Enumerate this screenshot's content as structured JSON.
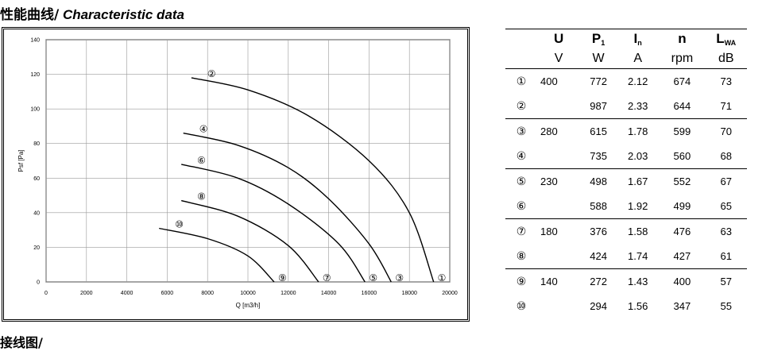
{
  "heading": {
    "cn": "性能曲线/",
    "en": " Characteristic data"
  },
  "footer_heading": "接线图/",
  "chart_data": {
    "type": "line",
    "xlabel": "Q [m3/h]",
    "ylabel": "Psf [Pa]",
    "xlim": [
      0,
      20000
    ],
    "ylim": [
      0,
      140
    ],
    "xticks": [
      0,
      2000,
      4000,
      6000,
      8000,
      10000,
      12000,
      14000,
      16000,
      18000,
      20000
    ],
    "yticks": [
      0,
      20,
      40,
      60,
      80,
      100,
      120,
      140
    ],
    "grid": true,
    "series": [
      {
        "name": "②",
        "points": [
          [
            7200,
            118
          ],
          [
            10000,
            111
          ],
          [
            13000,
            96
          ],
          [
            16000,
            70
          ],
          [
            18000,
            40
          ],
          [
            19200,
            0
          ]
        ]
      },
      {
        "name": "④",
        "points": [
          [
            6800,
            86
          ],
          [
            9500,
            79
          ],
          [
            12000,
            66
          ],
          [
            14000,
            48
          ],
          [
            16000,
            22
          ],
          [
            17100,
            0
          ]
        ]
      },
      {
        "name": "⑥",
        "points": [
          [
            6700,
            68
          ],
          [
            9500,
            60
          ],
          [
            12000,
            45
          ],
          [
            14500,
            22
          ],
          [
            15800,
            0
          ]
        ]
      },
      {
        "name": "⑧",
        "points": [
          [
            6700,
            47
          ],
          [
            9500,
            38
          ],
          [
            12000,
            21
          ],
          [
            13500,
            0
          ]
        ]
      },
      {
        "name": "⑩",
        "points": [
          [
            5600,
            31
          ],
          [
            8000,
            25
          ],
          [
            10000,
            15
          ],
          [
            11300,
            0
          ]
        ]
      }
    ],
    "end_markers": [
      {
        "label": "①",
        "x": 19200,
        "y": 0
      },
      {
        "label": "③",
        "x": 17100,
        "y": 0
      },
      {
        "label": "⑤",
        "x": 15800,
        "y": 0
      },
      {
        "label": "⑦",
        "x": 13500,
        "y": 0
      },
      {
        "label": "⑨",
        "x": 11300,
        "y": 0
      }
    ]
  },
  "table": {
    "headers": [
      {
        "main": "U",
        "sub": ""
      },
      {
        "main": "P",
        "sub": "1"
      },
      {
        "main": "I",
        "sub": "n"
      },
      {
        "main": "n",
        "sub": ""
      },
      {
        "main": "L",
        "sub": "WA"
      }
    ],
    "units": [
      "V",
      "W",
      "A",
      "rpm",
      "dB"
    ],
    "rows": [
      {
        "idx": "①",
        "u": "400",
        "p": "772",
        "i": "2.12",
        "n": "674",
        "l": "73"
      },
      {
        "idx": "②",
        "u": "",
        "p": "987",
        "i": "2.33",
        "n": "644",
        "l": "71"
      },
      {
        "idx": "③",
        "u": "280",
        "p": "615",
        "i": "1.78",
        "n": "599",
        "l": "70"
      },
      {
        "idx": "④",
        "u": "",
        "p": "735",
        "i": "2.03",
        "n": "560",
        "l": "68"
      },
      {
        "idx": "⑤",
        "u": "230",
        "p": "498",
        "i": "1.67",
        "n": "552",
        "l": "67"
      },
      {
        "idx": "⑥",
        "u": "",
        "p": "588",
        "i": "1.92",
        "n": "499",
        "l": "65"
      },
      {
        "idx": "⑦",
        "u": "180",
        "p": "376",
        "i": "1.58",
        "n": "476",
        "l": "63"
      },
      {
        "idx": "⑧",
        "u": "",
        "p": "424",
        "i": "1.74",
        "n": "427",
        "l": "61"
      },
      {
        "idx": "⑨",
        "u": "140",
        "p": "272",
        "i": "1.43",
        "n": "400",
        "l": "57"
      },
      {
        "idx": "⑩",
        "u": "",
        "p": "294",
        "i": "1.56",
        "n": "347",
        "l": "55"
      }
    ]
  }
}
